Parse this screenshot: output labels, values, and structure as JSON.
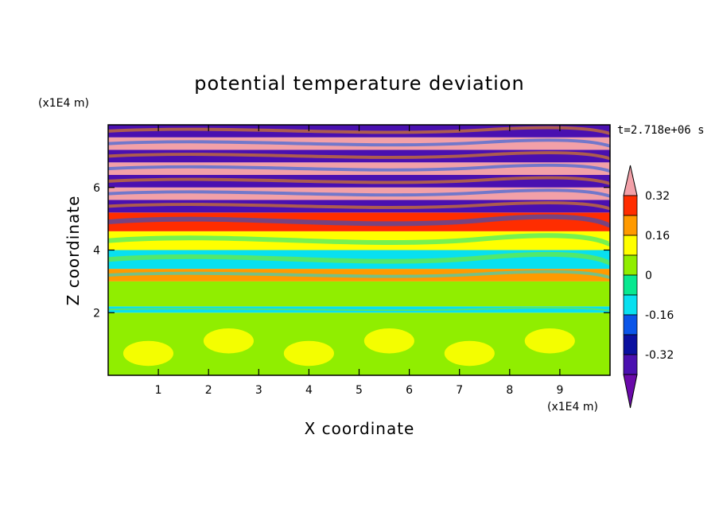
{
  "chart_data": {
    "type": "heatmap",
    "title": "potential temperature deviation",
    "xlabel": "X coordinate",
    "ylabel": "Z coordinate",
    "x_unit": "(x1E4 m)",
    "y_unit": "(x1E4 m)",
    "time_label": "t=2.718e+06 s",
    "xlim": [
      0,
      10
    ],
    "ylim": [
      0,
      8
    ],
    "x_ticks": [
      1,
      2,
      3,
      4,
      5,
      6,
      7,
      8,
      9
    ],
    "y_ticks": [
      2,
      4,
      6
    ],
    "colorbar": {
      "levels": [
        -0.4,
        -0.32,
        -0.24,
        -0.16,
        -0.08,
        0,
        0.08,
        0.16,
        0.24,
        0.32,
        0.4
      ],
      "labels": [
        "0.32",
        "0.16",
        "0",
        "-0.16",
        "-0.32"
      ],
      "label_values": [
        0.32,
        0.16,
        0,
        -0.16,
        -0.32
      ],
      "colors": [
        "#6a0aaa",
        "#4a10b0",
        "#0a10a0",
        "#0a55e8",
        "#08e0f0",
        "#08e890",
        "#90ee00",
        "#ffff00",
        "#ff9a00",
        "#ff2d00",
        "#f2a0a8"
      ],
      "extend": "both"
    },
    "bands": [
      {
        "z0": 0.0,
        "z1": 2.0,
        "value": 0.04
      },
      {
        "z0": 2.0,
        "z1": 2.2,
        "value": -0.12
      },
      {
        "z0": 2.2,
        "z1": 3.0,
        "value": 0.0
      },
      {
        "z0": 3.0,
        "z1": 3.4,
        "value": 0.2
      },
      {
        "z0": 3.4,
        "z1": 4.0,
        "value": -0.12
      },
      {
        "z0": 4.0,
        "z1": 4.6,
        "value": 0.1
      },
      {
        "z0": 4.6,
        "z1": 5.2,
        "value": 0.3
      },
      {
        "z0": 5.2,
        "z1": 5.6,
        "value": -0.36
      },
      {
        "z0": 5.6,
        "z1": 6.0,
        "value": 0.36
      },
      {
        "z0": 6.0,
        "z1": 6.4,
        "value": -0.38
      },
      {
        "z0": 6.4,
        "z1": 6.8,
        "value": 0.38
      },
      {
        "z0": 6.8,
        "z1": 7.2,
        "value": -0.38
      },
      {
        "z0": 7.2,
        "z1": 7.6,
        "value": 0.38
      },
      {
        "z0": 7.6,
        "z1": 8.0,
        "value": -0.38
      }
    ]
  }
}
